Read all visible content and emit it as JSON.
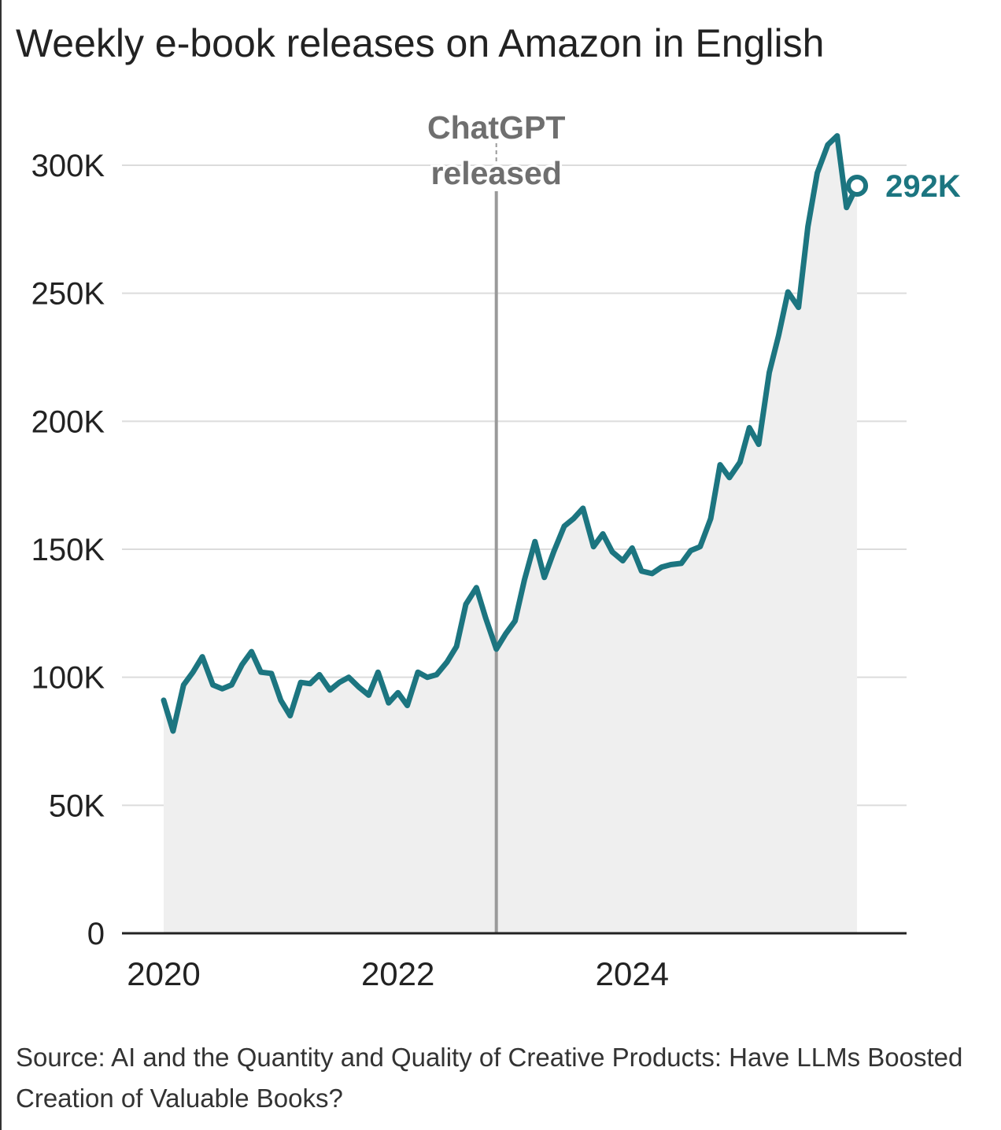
{
  "chart_data": {
    "type": "area",
    "title": "Weekly e-book releases on Amazon in English",
    "xlabel": "",
    "ylabel": "",
    "xlim": [
      2020.0,
      2026.0
    ],
    "ylim": [
      0,
      300000
    ],
    "x_ticks": [
      {
        "value": 2020,
        "label": "2020"
      },
      {
        "value": 2022,
        "label": "2022"
      },
      {
        "value": 2024,
        "label": "2024"
      }
    ],
    "y_ticks": [
      {
        "value": 0,
        "label": "0"
      },
      {
        "value": 50000,
        "label": "50K"
      },
      {
        "value": 100000,
        "label": "100K"
      },
      {
        "value": 150000,
        "label": "150K"
      },
      {
        "value": 200000,
        "label": "200K"
      },
      {
        "value": 250000,
        "label": "250K"
      },
      {
        "value": 300000,
        "label": "300K"
      }
    ],
    "grid": true,
    "line_color": "#1c7580",
    "area_color": "#efefef",
    "annotation": {
      "x": 2022.84,
      "line1": "ChatGPT",
      "line2": "released"
    },
    "end_label": "292K",
    "series": [
      {
        "x": [
          2020.0,
          2020.08,
          2020.17,
          2020.25,
          2020.33,
          2020.42,
          2020.5,
          2020.58,
          2020.67,
          2020.75,
          2020.83,
          2020.92,
          2021.0,
          2021.08,
          2021.17,
          2021.25,
          2021.33,
          2021.42,
          2021.5,
          2021.58,
          2021.67,
          2021.75,
          2021.83,
          2021.92,
          2022.0,
          2022.08,
          2022.17,
          2022.25,
          2022.33,
          2022.42,
          2022.5,
          2022.58,
          2022.67,
          2022.75,
          2022.84,
          2022.92,
          2023.0,
          2023.08,
          2023.17,
          2023.25,
          2023.33,
          2023.42,
          2023.5,
          2023.58,
          2023.67,
          2023.75,
          2023.83,
          2023.92,
          2024.0,
          2024.08,
          2024.17,
          2024.25,
          2024.33,
          2024.42,
          2024.5,
          2024.58,
          2024.67,
          2024.75,
          2024.83,
          2024.92,
          2025.0,
          2025.08,
          2025.17,
          2025.25,
          2025.33,
          2025.42,
          2025.5,
          2025.58,
          2025.67,
          2025.75,
          2025.83,
          2025.92
        ],
        "y": [
          91000,
          79000,
          97000,
          102000,
          108000,
          97000,
          95500,
          97000,
          105000,
          110000,
          102000,
          101500,
          91000,
          85000,
          98000,
          97500,
          101000,
          95000,
          98000,
          100000,
          96000,
          93000,
          102000,
          90000,
          94000,
          89000,
          102000,
          100000,
          101000,
          106000,
          112000,
          128500,
          135000,
          123000,
          111000,
          117000,
          122000,
          138000,
          153000,
          139000,
          149000,
          159000,
          162000,
          166000,
          151000,
          156000,
          149000,
          145500,
          150500,
          141500,
          140500,
          143000,
          144000,
          144500,
          149500,
          151000,
          162000,
          183000,
          178000,
          184000,
          197500,
          191000,
          219000,
          233500,
          250500,
          244500,
          276000,
          297000,
          308000,
          311500,
          283500,
          292000
        ]
      }
    ]
  },
  "source": "Source: AI and the Quantity and Quality of Creative Products: Have LLMs Boosted Creation of Valuable Books?"
}
